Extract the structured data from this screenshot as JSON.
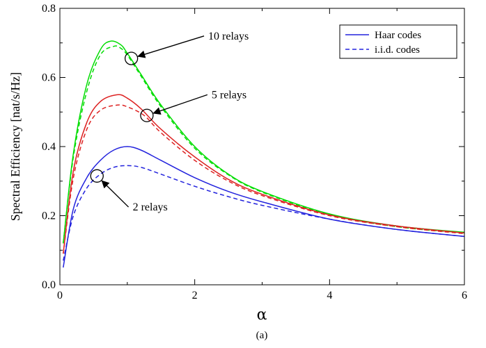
{
  "chart_data": {
    "type": "line",
    "xlabel": "α",
    "ylabel": "Spectral Efficiency [nat/s/Hz]",
    "caption": "(a)",
    "xlim": [
      0,
      6
    ],
    "ylim": [
      0,
      0.8
    ],
    "xticks": [
      0,
      2,
      4,
      6
    ],
    "yticks": [
      0.0,
      0.2,
      0.4,
      0.6,
      0.8
    ],
    "xtick_labels": [
      "0",
      "2",
      "4",
      "6"
    ],
    "ytick_labels": [
      "0.0",
      "0.2",
      "0.4",
      "0.6",
      "0.8"
    ],
    "grid": false,
    "legend_position": "top-right",
    "legend": [
      {
        "label": "Haar codes",
        "style": "solid"
      },
      {
        "label": "i.i.d. codes",
        "style": "dashed"
      }
    ],
    "series": [
      {
        "name": "10 relays, Haar codes",
        "color": "#00dd00",
        "style": "solid",
        "x": [
          0.05,
          0.2,
          0.4,
          0.6,
          0.75,
          0.9,
          1.0,
          1.2,
          1.5,
          2.0,
          2.5,
          3.0,
          4.0,
          5.0,
          6.0
        ],
        "y": [
          0.12,
          0.38,
          0.58,
          0.68,
          0.705,
          0.695,
          0.67,
          0.61,
          0.52,
          0.4,
          0.32,
          0.27,
          0.205,
          0.17,
          0.152
        ]
      },
      {
        "name": "10 relays, i.i.d. codes",
        "color": "#00dd00",
        "style": "dashed",
        "x": [
          0.05,
          0.2,
          0.4,
          0.6,
          0.8,
          0.9,
          1.0,
          1.2,
          1.5,
          2.0,
          2.5,
          3.0,
          4.0,
          5.0,
          6.0
        ],
        "y": [
          0.12,
          0.37,
          0.56,
          0.665,
          0.69,
          0.685,
          0.665,
          0.605,
          0.515,
          0.395,
          0.318,
          0.268,
          0.203,
          0.168,
          0.15
        ]
      },
      {
        "name": "5 relays, Haar codes",
        "color": "#dd2222",
        "style": "solid",
        "x": [
          0.05,
          0.2,
          0.4,
          0.6,
          0.85,
          1.0,
          1.2,
          1.5,
          2.0,
          2.5,
          3.0,
          4.0,
          5.0,
          6.0
        ],
        "y": [
          0.09,
          0.33,
          0.47,
          0.53,
          0.55,
          0.54,
          0.51,
          0.45,
          0.37,
          0.305,
          0.262,
          0.202,
          0.17,
          0.15
        ]
      },
      {
        "name": "5 relays, i.i.d. codes",
        "color": "#dd2222",
        "style": "dashed",
        "x": [
          0.05,
          0.2,
          0.4,
          0.6,
          0.85,
          1.0,
          1.25,
          1.5,
          2.0,
          2.5,
          3.0,
          4.0,
          5.0,
          6.0
        ],
        "y": [
          0.09,
          0.31,
          0.45,
          0.505,
          0.52,
          0.515,
          0.49,
          0.44,
          0.36,
          0.3,
          0.258,
          0.2,
          0.168,
          0.148
        ]
      },
      {
        "name": "2 relays, Haar codes",
        "color": "#2222dd",
        "style": "solid",
        "x": [
          0.05,
          0.2,
          0.4,
          0.6,
          0.8,
          1.0,
          1.2,
          1.5,
          2.0,
          2.5,
          3.0,
          4.0,
          5.0,
          6.0
        ],
        "y": [
          0.05,
          0.22,
          0.31,
          0.36,
          0.39,
          0.4,
          0.39,
          0.36,
          0.31,
          0.27,
          0.24,
          0.19,
          0.16,
          0.14
        ]
      },
      {
        "name": "2 relays, i.i.d. codes",
        "color": "#2222dd",
        "style": "dashed",
        "x": [
          0.05,
          0.2,
          0.4,
          0.6,
          0.8,
          1.0,
          1.2,
          1.5,
          2.0,
          2.5,
          3.0,
          4.0,
          5.0,
          6.0
        ],
        "y": [
          0.07,
          0.2,
          0.28,
          0.32,
          0.34,
          0.345,
          0.34,
          0.32,
          0.285,
          0.255,
          0.23,
          0.19,
          0.16,
          0.14
        ]
      }
    ],
    "annotations": [
      {
        "text": "10 relays",
        "circle": {
          "x": 1.06,
          "y": 0.655
        },
        "text_pos": {
          "x": 2.2,
          "y": 0.72
        }
      },
      {
        "text": "5 relays",
        "circle": {
          "x": 1.29,
          "y": 0.49
        },
        "text_pos": {
          "x": 2.25,
          "y": 0.55
        }
      },
      {
        "text": "2 relays",
        "circle": {
          "x": 0.55,
          "y": 0.315
        },
        "text_pos": {
          "x": 1.08,
          "y": 0.225
        }
      }
    ]
  }
}
